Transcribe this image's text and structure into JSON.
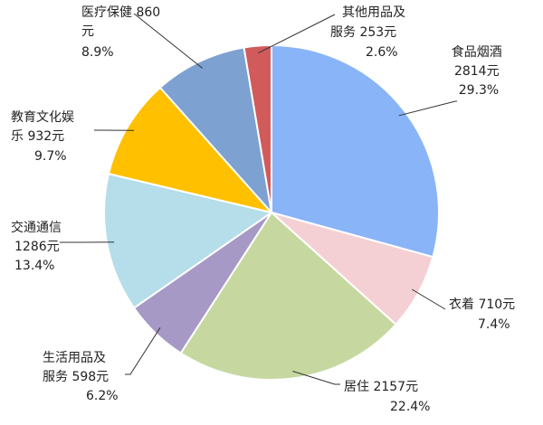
{
  "chart_data": {
    "type": "pie",
    "title": "",
    "slices": [
      {
        "name": "食品烟酒",
        "value_label": "2814元",
        "percent_label": "29.3%",
        "value": 2814,
        "percent": 29.3,
        "color": "#8AB4F8"
      },
      {
        "name": "衣着",
        "value_label": "710元",
        "percent_label": "7.4%",
        "value": 710,
        "percent": 7.4,
        "color": "#F4D0D4"
      },
      {
        "name": "居住",
        "value_label": "2157元",
        "percent_label": "22.4%",
        "value": 2157,
        "percent": 22.4,
        "color": "#C6D8A0"
      },
      {
        "name": "生活用品及服务",
        "value_label": "598元",
        "percent_label": "6.2%",
        "value": 598,
        "percent": 6.2,
        "color": "#A699C6"
      },
      {
        "name": "交通通信",
        "value_label": "1286元",
        "percent_label": "13.4%",
        "value": 1286,
        "percent": 13.4,
        "color": "#B5DDEA"
      },
      {
        "name": "教育文化娱乐",
        "value_label": "932元",
        "percent_label": "9.7%",
        "value": 932,
        "percent": 9.7,
        "color": "#FFC000"
      },
      {
        "name": "医疗保健",
        "value_label": "860元",
        "percent_label": "8.9%",
        "value": 860,
        "percent": 8.9,
        "color": "#7DA1D1"
      },
      {
        "name": "其他用品及服务",
        "value_label": "253元",
        "percent_label": "2.6%",
        "value": 253,
        "percent": 2.6,
        "color": "#D15B5B"
      }
    ]
  }
}
